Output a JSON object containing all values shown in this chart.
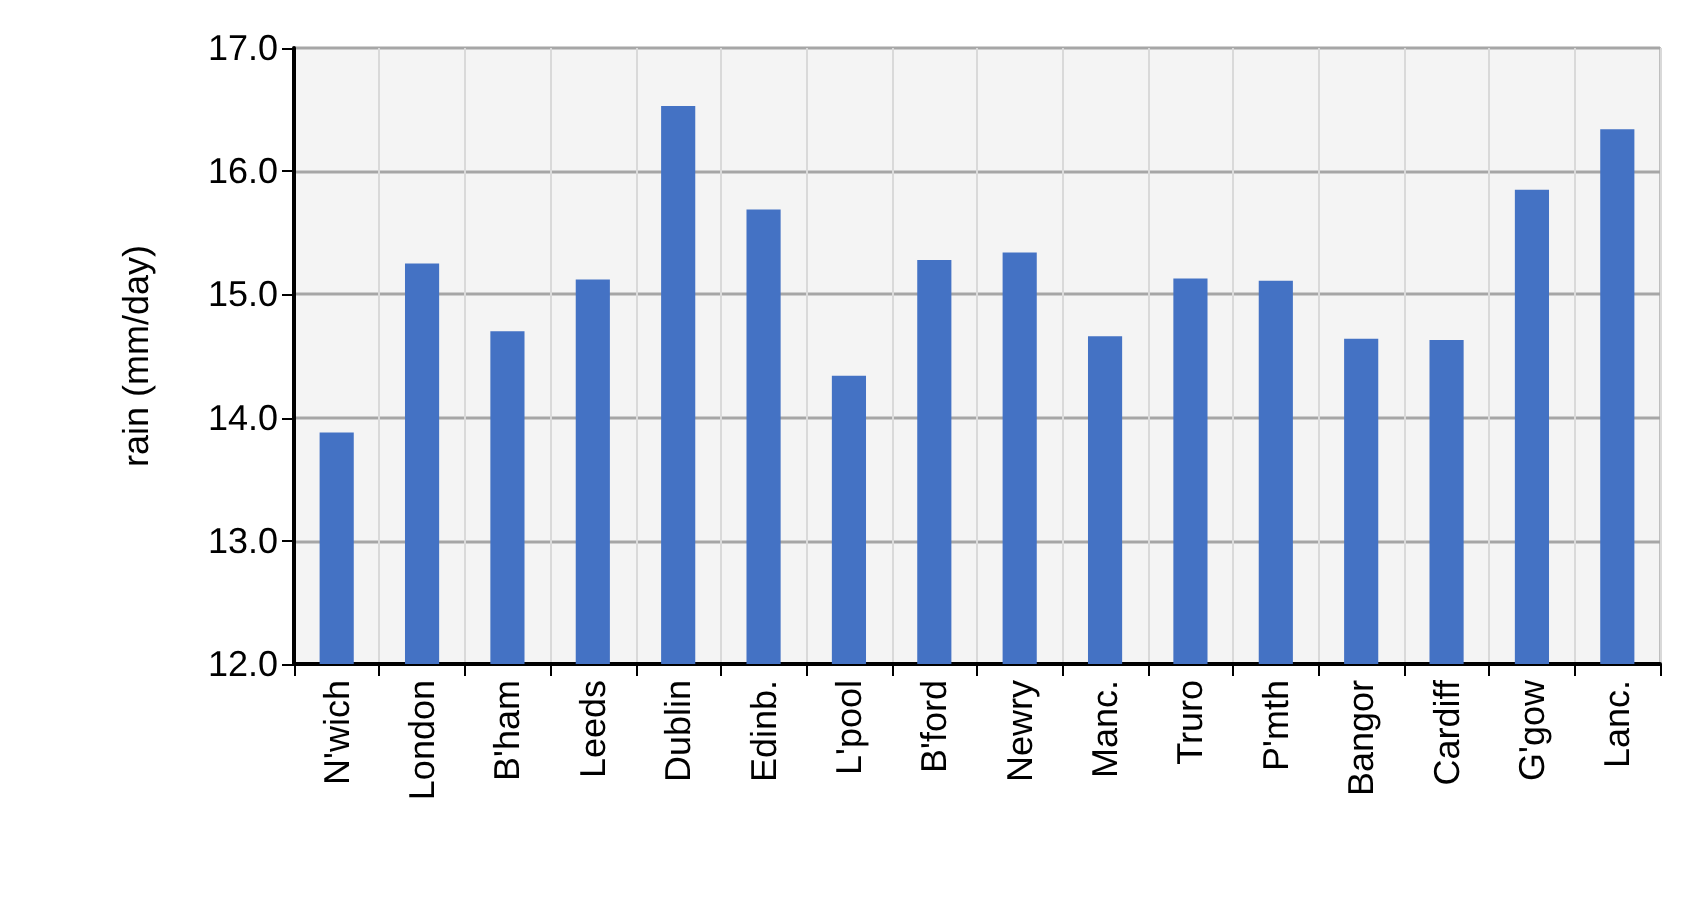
{
  "chart_data": {
    "type": "bar",
    "ylabel": "rain (mm/day)",
    "categories": [
      "N'wich",
      "London",
      "B'ham",
      "Leeds",
      "Dublin",
      "Edinb.",
      "L'pool",
      "B'ford",
      "Newry",
      "Manc.",
      "Truro",
      "P'mth",
      "Bangor",
      "Cardiff",
      "G'gow",
      "Lanc."
    ],
    "values": [
      13.88,
      15.25,
      14.7,
      15.12,
      16.53,
      15.69,
      14.34,
      15.28,
      15.34,
      14.66,
      15.13,
      15.11,
      14.64,
      14.63,
      15.85,
      16.34
    ],
    "color": "#4472c4",
    "ylim": [
      12,
      17
    ],
    "yticks": [
      {
        "value": 12,
        "label": "12.0"
      },
      {
        "value": 13,
        "label": "13.0"
      },
      {
        "value": 14,
        "label": "14.0"
      },
      {
        "value": 15,
        "label": "15.0"
      },
      {
        "value": 16,
        "label": "16.0"
      },
      {
        "value": 17,
        "label": "17.0"
      }
    ],
    "grid": true
  }
}
